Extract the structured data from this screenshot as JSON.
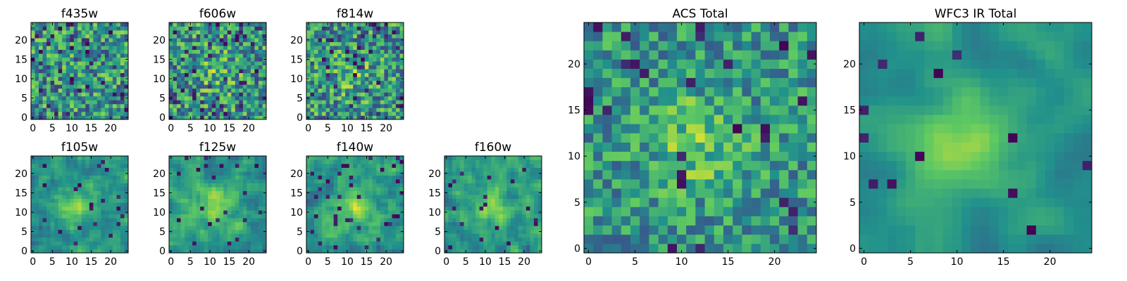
{
  "chart_data": {
    "type": "heatmap",
    "colormap": [
      "#440154",
      "#3b528b",
      "#21918c",
      "#5ec962",
      "#fde725"
    ],
    "panels": [
      {
        "id": "f435w",
        "title": "f435w",
        "grid": 25,
        "seed": 11,
        "blob": 0.0,
        "noise": 0.3,
        "dark_rate": 0.07,
        "smooth": 0,
        "xticks": [
          0,
          5,
          10,
          15,
          20
        ],
        "yticks": [
          0,
          5,
          10,
          15,
          20
        ]
      },
      {
        "id": "f606w",
        "title": "f606w",
        "grid": 25,
        "seed": 23,
        "blob": 0.15,
        "noise": 0.3,
        "dark_rate": 0.07,
        "smooth": 0,
        "xticks": [
          0,
          5,
          10,
          15,
          20
        ],
        "yticks": [
          0,
          5,
          10,
          15,
          20
        ]
      },
      {
        "id": "f814w",
        "title": "f814w",
        "grid": 25,
        "seed": 37,
        "blob": 0.15,
        "noise": 0.3,
        "dark_rate": 0.07,
        "smooth": 0,
        "xticks": [
          0,
          5,
          10,
          15,
          20
        ],
        "yticks": [
          0,
          5,
          10,
          15,
          20
        ]
      },
      {
        "id": "f105w",
        "title": "f105w",
        "grid": 25,
        "seed": 41,
        "blob": 0.3,
        "noise": 0.18,
        "dark_rate": 0.03,
        "smooth": 1,
        "xticks": [
          0,
          5,
          10,
          15,
          20
        ],
        "yticks": [
          0,
          5,
          10,
          15,
          20
        ]
      },
      {
        "id": "f125w",
        "title": "f125w",
        "grid": 25,
        "seed": 53,
        "blob": 0.28,
        "noise": 0.2,
        "dark_rate": 0.04,
        "smooth": 1,
        "xticks": [
          0,
          5,
          10,
          15,
          20
        ],
        "yticks": [
          0,
          5,
          10,
          15,
          20
        ]
      },
      {
        "id": "f140w",
        "title": "f140w",
        "grid": 25,
        "seed": 67,
        "blob": 0.28,
        "noise": 0.2,
        "dark_rate": 0.04,
        "smooth": 1,
        "xticks": [
          0,
          5,
          10,
          15,
          20
        ],
        "yticks": [
          0,
          5,
          10,
          15,
          20
        ]
      },
      {
        "id": "f160w",
        "title": "f160w",
        "grid": 25,
        "seed": 79,
        "blob": 0.28,
        "noise": 0.2,
        "dark_rate": 0.04,
        "smooth": 1,
        "xticks": [
          0,
          5,
          10,
          15,
          20
        ],
        "yticks": [
          0,
          5,
          10,
          15,
          20
        ]
      },
      {
        "id": "acs-total",
        "title": "ACS Total",
        "grid": 25,
        "seed": 97,
        "blob": 0.22,
        "noise": 0.22,
        "dark_rate": 0.05,
        "smooth": 0,
        "xticks": [
          0,
          5,
          10,
          15,
          20
        ],
        "yticks": [
          0,
          5,
          10,
          15,
          20
        ]
      },
      {
        "id": "wfc3-ir-total",
        "title": "WFC3 IR Total",
        "grid": 25,
        "seed": 101,
        "blob": 0.35,
        "noise": 0.12,
        "dark_rate": 0.02,
        "smooth": 2,
        "xticks": [
          0,
          5,
          10,
          15,
          20
        ],
        "yticks": [
          0,
          5,
          10,
          15,
          20
        ]
      }
    ]
  }
}
